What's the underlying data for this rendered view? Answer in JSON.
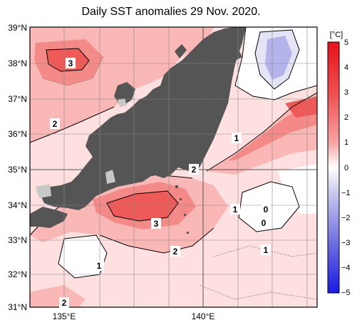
{
  "title": "Daily SST anomalies 29 Nov. 2020.",
  "colorbar": {
    "unit": "[°C]",
    "ticks": [
      "5",
      "4",
      "3",
      "2",
      "1",
      "0",
      "−1",
      "−2",
      "−3",
      "−4",
      "−5"
    ],
    "range": [
      -5,
      5
    ]
  },
  "axes": {
    "lat_labels": [
      "39°N",
      "38°N",
      "37°N",
      "36°N",
      "35°N",
      "34°N",
      "33°N",
      "32°N",
      "31°N"
    ],
    "lon_labels": [
      "135°E",
      "140°E"
    ]
  },
  "contour_labels": [
    "3",
    "2",
    "1",
    "2",
    "1",
    "3",
    "2",
    "1",
    "1",
    "0",
    "0",
    "1",
    "2"
  ],
  "colors": {
    "land": "#555555",
    "lake": "#c8c8c8",
    "anom_0": "#ffffff",
    "anom_1": "#fde0df",
    "anom_2": "#f9b7b6",
    "anom_3": "#f48a88",
    "anom_4": "#ee5a58",
    "anom_neg1": "#e4e4f6",
    "anom_neg2": "#b4b4ea"
  }
}
